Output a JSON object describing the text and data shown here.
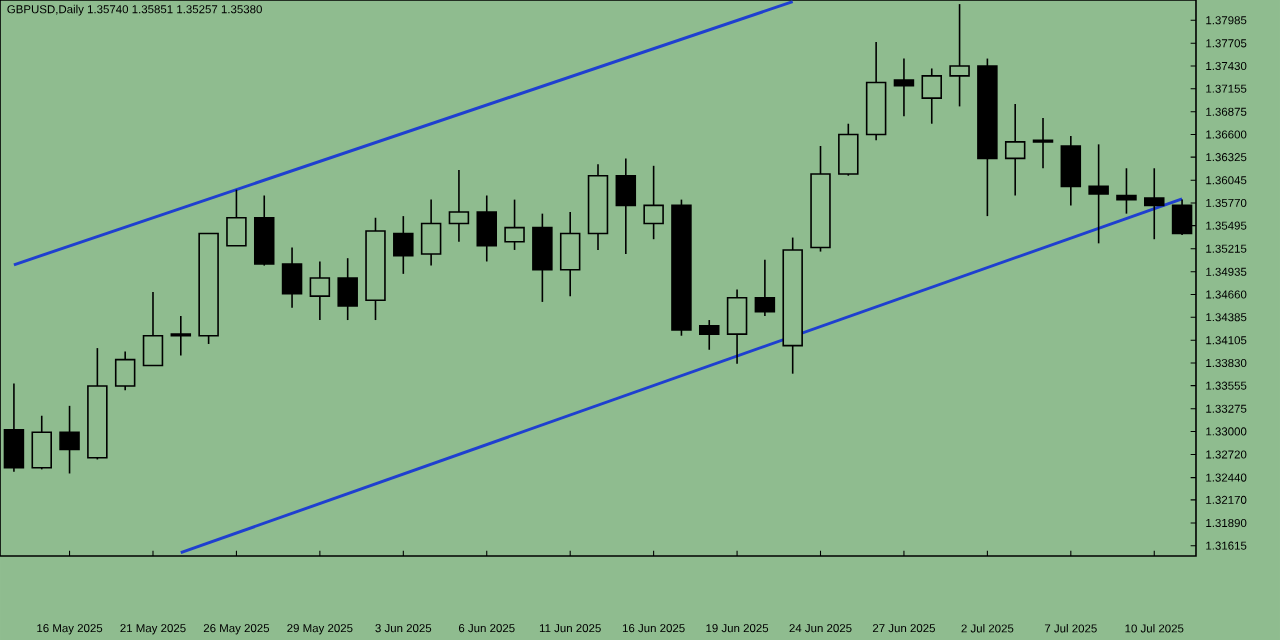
{
  "chart_data": {
    "type": "candlestick",
    "title": "GBPUSD,Daily  1.35740 1.35851 1.35257 1.35380",
    "categories": [
      null,
      null,
      "16 May 2025",
      null,
      null,
      "21 May 2025",
      null,
      null,
      "26 May 2025",
      null,
      null,
      "29 May 2025",
      null,
      null,
      "3 Jun 2025",
      null,
      null,
      "6 Jun 2025",
      null,
      null,
      "11 Jun 2025",
      null,
      null,
      "16 Jun 2025",
      null,
      null,
      "19 Jun 2025",
      null,
      null,
      "24 Jun 2025",
      null,
      null,
      "27 Jun 2025",
      null,
      null,
      "2 Jul 2025",
      null,
      null,
      "7 Jul 2025",
      null,
      null,
      "10 Jul 2025",
      null
    ],
    "ohlc": [
      [
        1.3302,
        1.3358,
        1.3251,
        1.3256
      ],
      [
        1.3256,
        1.3319,
        1.3254,
        1.3299
      ],
      [
        1.3299,
        1.3331,
        1.3249,
        1.3278
      ],
      [
        1.3268,
        1.3401,
        1.3266,
        1.3355
      ],
      [
        1.3355,
        1.3397,
        1.335,
        1.3387
      ],
      [
        1.338,
        1.3469,
        1.338,
        1.3416
      ],
      [
        1.3416,
        1.344,
        1.3392,
        1.3418
      ],
      [
        1.3416,
        1.354,
        1.3406,
        1.354
      ],
      [
        1.3525,
        1.3593,
        1.3525,
        1.3559
      ],
      [
        1.3559,
        1.3586,
        1.3501,
        1.3503
      ],
      [
        1.3503,
        1.3523,
        1.345,
        1.3467
      ],
      [
        1.3464,
        1.3506,
        1.3435,
        1.3486
      ],
      [
        1.3486,
        1.351,
        1.3435,
        1.3452
      ],
      [
        1.3459,
        1.3559,
        1.3435,
        1.3543
      ],
      [
        1.354,
        1.3561,
        1.3491,
        1.3513
      ],
      [
        1.3515,
        1.3581,
        1.3501,
        1.3552
      ],
      [
        1.3552,
        1.3617,
        1.353,
        1.3566
      ],
      [
        1.3566,
        1.3586,
        1.3506,
        1.3525
      ],
      [
        1.353,
        1.3581,
        1.352,
        1.3547
      ],
      [
        1.3547,
        1.3564,
        1.3457,
        1.3496
      ],
      [
        1.3496,
        1.3566,
        1.3464,
        1.354
      ],
      [
        1.354,
        1.3624,
        1.352,
        1.361
      ],
      [
        1.361,
        1.3631,
        1.3515,
        1.3574
      ],
      [
        1.3552,
        1.3622,
        1.3533,
        1.3574
      ],
      [
        1.3574,
        1.3581,
        1.3416,
        1.3423
      ],
      [
        1.3428,
        1.3435,
        1.3399,
        1.3418
      ],
      [
        1.3418,
        1.3472,
        1.3382,
        1.3462
      ],
      [
        1.3462,
        1.3508,
        1.344,
        1.3445
      ],
      [
        1.3404,
        1.3535,
        1.337,
        1.352
      ],
      [
        1.3523,
        1.3646,
        1.3518,
        1.3612
      ],
      [
        1.3612,
        1.3673,
        1.361,
        1.366
      ],
      [
        1.366,
        1.3772,
        1.3653,
        1.3723
      ],
      [
        1.3726,
        1.3752,
        1.3682,
        1.3719
      ],
      [
        1.3704,
        1.374,
        1.3673,
        1.3731
      ],
      [
        1.3731,
        1.3818,
        1.3694,
        1.3743
      ],
      [
        1.3743,
        1.3752,
        1.3561,
        1.3631
      ],
      [
        1.3631,
        1.3697,
        1.3586,
        1.3651
      ],
      [
        1.3651,
        1.368,
        1.3619,
        1.3653
      ],
      [
        1.3646,
        1.3658,
        1.3574,
        1.3597
      ],
      [
        1.3597,
        1.3648,
        1.3528,
        1.3588
      ],
      [
        1.3586,
        1.3619,
        1.3564,
        1.3581
      ],
      [
        1.3583,
        1.3619,
        1.3533,
        1.3574
      ],
      [
        1.3574,
        1.3581,
        1.3538,
        1.354
      ]
    ],
    "series": [
      {
        "type": "line",
        "color": "#1f3fd0",
        "values": [
          1.3502,
          null,
          null,
          null,
          null,
          null,
          null,
          null,
          null,
          null,
          null,
          null,
          null,
          null,
          null,
          null,
          null,
          null,
          null,
          null,
          null,
          null,
          null,
          null,
          null,
          null,
          null,
          null,
          1.3821,
          null,
          null,
          null,
          null,
          null,
          null,
          null,
          null,
          null,
          null,
          null,
          null,
          null,
          null
        ]
      },
      {
        "type": "line",
        "color": "#1f3fd0",
        "values": [
          null,
          null,
          null,
          null,
          null,
          null,
          1.3153,
          null,
          null,
          null,
          null,
          null,
          null,
          null,
          null,
          null,
          null,
          null,
          null,
          null,
          null,
          null,
          null,
          null,
          null,
          null,
          null,
          null,
          null,
          null,
          null,
          null,
          null,
          null,
          null,
          null,
          null,
          null,
          null,
          null,
          null,
          null,
          1.3582
        ]
      }
    ],
    "ylim": [
      1.3149,
      1.3823
    ],
    "yticks": [
      {
        "value": 1.31615,
        "label": "1.31615"
      },
      {
        "value": 1.3189,
        "label": "1.31890"
      },
      {
        "value": 1.3217,
        "label": "1.32170"
      },
      {
        "value": 1.3244,
        "label": "1.32440"
      },
      {
        "value": 1.3272,
        "label": "1.32720"
      },
      {
        "value": 1.33,
        "label": "1.33000"
      },
      {
        "value": 1.33275,
        "label": "1.33275"
      },
      {
        "value": 1.33555,
        "label": "1.33555"
      },
      {
        "value": 1.3383,
        "label": "1.33830"
      },
      {
        "value": 1.34105,
        "label": "1.34105"
      },
      {
        "value": 1.34385,
        "label": "1.34385"
      },
      {
        "value": 1.3466,
        "label": "1.34660"
      },
      {
        "value": 1.34935,
        "label": "1.34935"
      },
      {
        "value": 1.35215,
        "label": "1.35215"
      },
      {
        "value": 1.35495,
        "label": "1.35495"
      },
      {
        "value": 1.3577,
        "label": "1.35770"
      },
      {
        "value": 1.36045,
        "label": "1.36045"
      },
      {
        "value": 1.36325,
        "label": "1.36325"
      },
      {
        "value": 1.366,
        "label": "1.36600"
      },
      {
        "value": 1.36875,
        "label": "1.36875"
      },
      {
        "value": 1.37155,
        "label": "1.37155"
      },
      {
        "value": 1.3743,
        "label": "1.37430"
      },
      {
        "value": 1.37705,
        "label": "1.37705"
      },
      {
        "value": 1.37985,
        "label": "1.37985"
      }
    ]
  }
}
